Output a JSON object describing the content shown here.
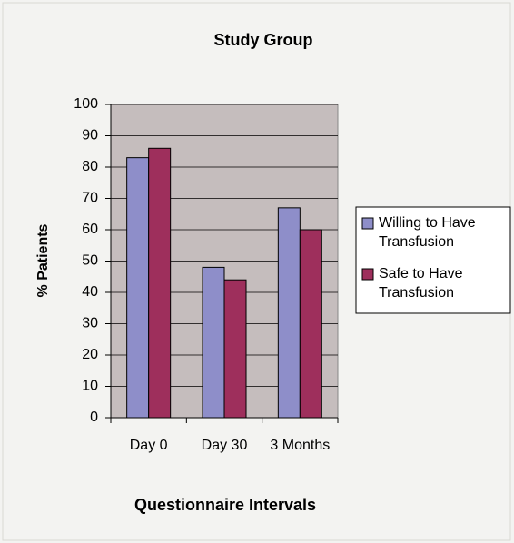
{
  "chart_data": {
    "type": "bar",
    "title": "Study Group",
    "x_label": "Questionnaire Intervals",
    "y_label": "% Patients",
    "categories": [
      "Day 0",
      "Day 30",
      "3 Months"
    ],
    "series": [
      {
        "name": "Willing to Have Transfusion",
        "color": "#8e8ec9",
        "values": [
          83,
          48,
          67
        ]
      },
      {
        "name": "Safe to Have Transfusion",
        "color": "#9e2f5c",
        "values": [
          86,
          44,
          60
        ]
      }
    ],
    "ylim": [
      0,
      100
    ],
    "yticks": [
      0,
      10,
      20,
      30,
      40,
      50,
      60,
      70,
      80,
      90,
      100
    ],
    "grid": true,
    "legend": "right"
  }
}
